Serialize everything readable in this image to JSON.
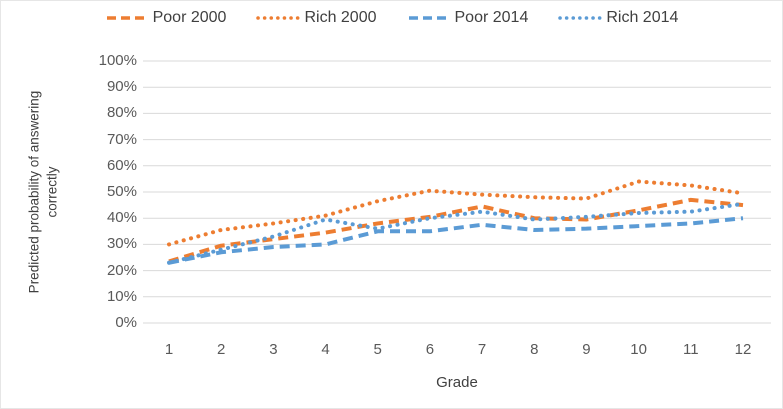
{
  "chart_data": {
    "type": "line",
    "title": "",
    "xlabel": "Grade",
    "ylabel": "Predicted probability of answering correctly",
    "ylabel_lines": [
      "Predicted probability of answering",
      "correctly"
    ],
    "x": [
      1,
      2,
      3,
      4,
      5,
      6,
      7,
      8,
      9,
      10,
      11,
      12
    ],
    "ylim": [
      0,
      100
    ],
    "y_tick_labels": [
      "100%",
      "90%",
      "80%",
      "70%",
      "60%",
      "50%",
      "40%",
      "30%",
      "20%",
      "10%",
      "0%"
    ],
    "grid": true,
    "legend_position": "top",
    "colors": {
      "orange": "#ED7D31",
      "blue": "#5B9BD5",
      "gridline": "#D9D9D9",
      "tick_text": "#595959",
      "axis_title_text": "#404040"
    },
    "series": [
      {
        "name": "Poor 2000",
        "color": "#ED7D31",
        "line_style": "dashed",
        "values": [
          23.5,
          29.5,
          32,
          34.5,
          38,
          40.5,
          44.5,
          40,
          39.5,
          43,
          47,
          45
        ]
      },
      {
        "name": "Rich 2000",
        "color": "#ED7D31",
        "line_style": "dotted",
        "values": [
          30,
          35.5,
          38,
          41,
          46.5,
          50.5,
          49,
          48,
          47.5,
          54,
          52.5,
          49.5
        ]
      },
      {
        "name": "Poor 2014",
        "color": "#5B9BD5",
        "line_style": "dashed",
        "values": [
          23,
          27,
          29,
          30,
          35,
          35,
          37.5,
          35.5,
          36,
          37,
          38,
          40
        ]
      },
      {
        "name": "Rich 2014",
        "color": "#5B9BD5",
        "line_style": "dotted",
        "values": [
          23,
          28,
          33,
          39.5,
          36,
          40,
          42.5,
          39.5,
          40.5,
          42,
          42.5,
          45.5
        ]
      }
    ]
  }
}
